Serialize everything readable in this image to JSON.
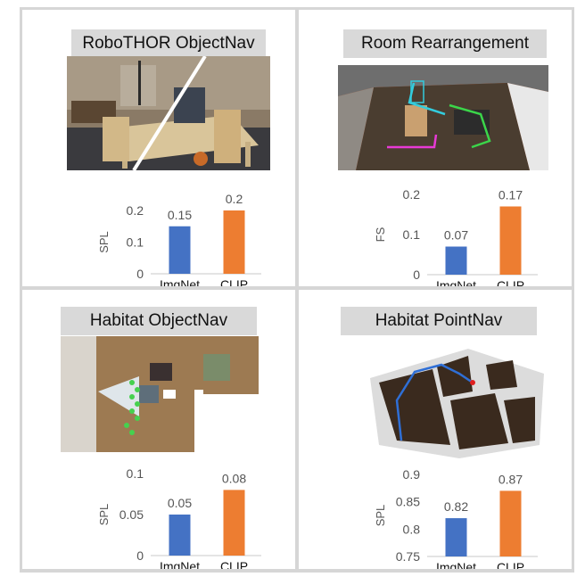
{
  "colors": {
    "imgnet": "#4472C4",
    "clip": "#ED7D31",
    "axis": "#c8c8c8",
    "tick_text": "#555555",
    "label_text": "#111111"
  },
  "panels": [
    {
      "title": "RoboTHOR ObjectNav",
      "image_icon": "robothor-scene-photo",
      "chart_data": {
        "type": "bar",
        "categories": [
          "ImgNet",
          "CLIP"
        ],
        "values": [
          0.15,
          0.2
        ],
        "data_labels": [
          "0.15",
          "0.2"
        ],
        "ylabel": "SPL",
        "yticks": [
          "0",
          "0.1",
          "0.2"
        ],
        "ylim": [
          0,
          0.2
        ]
      }
    },
    {
      "title": "Room Rearrangement",
      "image_icon": "room-rearrangement-render",
      "chart_data": {
        "type": "bar",
        "categories": [
          "ImgNet",
          "CLIP"
        ],
        "values": [
          0.07,
          0.17
        ],
        "data_labels": [
          "0.07",
          "0.17"
        ],
        "ylabel": "FS",
        "yticks": [
          "0",
          "0.1",
          "0.2"
        ],
        "ylim": [
          0,
          0.2
        ]
      }
    },
    {
      "title": "Habitat ObjectNav",
      "image_icon": "habitat-objectnav-topdown",
      "chart_data": {
        "type": "bar",
        "categories": [
          "ImgNet",
          "CLIP"
        ],
        "values": [
          0.05,
          0.08
        ],
        "data_labels": [
          "0.05",
          "0.08"
        ],
        "ylabel": "SPL",
        "yticks": [
          "0",
          "0.05",
          "0.1"
        ],
        "ylim": [
          0,
          0.1
        ]
      }
    },
    {
      "title": "Habitat PointNav",
      "image_icon": "habitat-pointnav-map",
      "chart_data": {
        "type": "bar",
        "categories": [
          "ImgNet",
          "CLIP"
        ],
        "values": [
          0.82,
          0.87
        ],
        "data_labels": [
          "0.82",
          "0.87"
        ],
        "ylabel": "SPL",
        "yticks": [
          "0.75",
          "0.8",
          "0.85",
          "0.9"
        ],
        "ylim": [
          0.75,
          0.9
        ]
      }
    }
  ]
}
